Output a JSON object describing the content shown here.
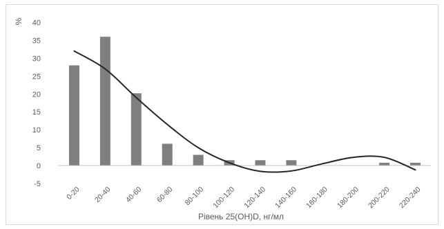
{
  "chart_data": {
    "type": "bar",
    "title": "",
    "xlabel": "Рівень 25(OH)D, нг/мл",
    "ylabel": "%",
    "ylim": [
      -5,
      40
    ],
    "yticks": [
      -5,
      0,
      5,
      10,
      15,
      20,
      25,
      30,
      35,
      40
    ],
    "grid": false,
    "legend": "none",
    "categories": [
      "0-20",
      "20-40",
      "40-60",
      "60-80",
      "80-100",
      "100-120",
      "120-140",
      "140-160",
      "160-180",
      "180-200",
      "200-220",
      "220-240"
    ],
    "series": [
      {
        "type": "bar",
        "values": [
          28,
          36,
          20.2,
          6.1,
          3,
          1.5,
          1.5,
          1.5,
          0,
          0,
          0.8,
          0.8
        ],
        "color": "#7f7f7f"
      },
      {
        "type": "line",
        "smooth": true,
        "x": [
          0,
          1,
          2,
          3,
          4,
          5,
          6,
          7,
          8,
          9,
          10,
          11
        ],
        "values": [
          32,
          27,
          19,
          11.5,
          5,
          0.8,
          -1.6,
          -1.5,
          0.5,
          2.3,
          2.3,
          -1.2
        ],
        "color": "#262626"
      }
    ],
    "colors": {
      "bar": "#7f7f7f",
      "trend": "#262626",
      "axis": "#bfbfbf",
      "text": "#595959",
      "frame": "#d9d9d9"
    }
  }
}
